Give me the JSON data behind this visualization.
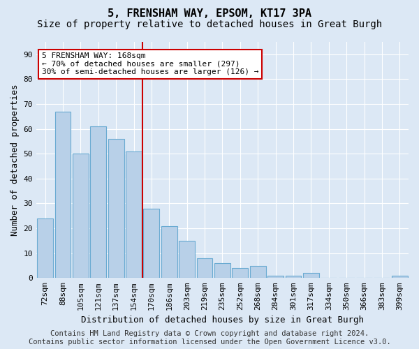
{
  "title": "5, FRENSHAM WAY, EPSOM, KT17 3PA",
  "subtitle": "Size of property relative to detached houses in Great Burgh",
  "xlabel": "Distribution of detached houses by size in Great Burgh",
  "ylabel": "Number of detached properties",
  "bins": [
    "72sqm",
    "88sqm",
    "105sqm",
    "121sqm",
    "137sqm",
    "154sqm",
    "170sqm",
    "186sqm",
    "203sqm",
    "219sqm",
    "235sqm",
    "252sqm",
    "268sqm",
    "284sqm",
    "301sqm",
    "317sqm",
    "334sqm",
    "350sqm",
    "366sqm",
    "383sqm",
    "399sqm"
  ],
  "values": [
    24,
    67,
    50,
    61,
    56,
    51,
    28,
    21,
    15,
    8,
    6,
    4,
    5,
    1,
    1,
    2,
    0,
    0,
    0,
    0,
    1
  ],
  "bar_color": "#b8d0e8",
  "bar_edge_color": "#6aabd2",
  "vline_x_index": 6,
  "vline_color": "#cc0000",
  "annotation_text": "5 FRENSHAM WAY: 168sqm\n← 70% of detached houses are smaller (297)\n30% of semi-detached houses are larger (126) →",
  "annotation_box_color": "#ffffff",
  "annotation_box_edge": "#cc0000",
  "footer_text": "Contains HM Land Registry data © Crown copyright and database right 2024.\nContains public sector information licensed under the Open Government Licence v3.0.",
  "ylim": [
    0,
    95
  ],
  "yticks": [
    0,
    10,
    20,
    30,
    40,
    50,
    60,
    70,
    80,
    90
  ],
  "background_color": "#dce8f5",
  "grid_color": "#ffffff",
  "title_fontsize": 11,
  "subtitle_fontsize": 10,
  "label_fontsize": 9,
  "tick_fontsize": 8,
  "footer_fontsize": 7.5
}
